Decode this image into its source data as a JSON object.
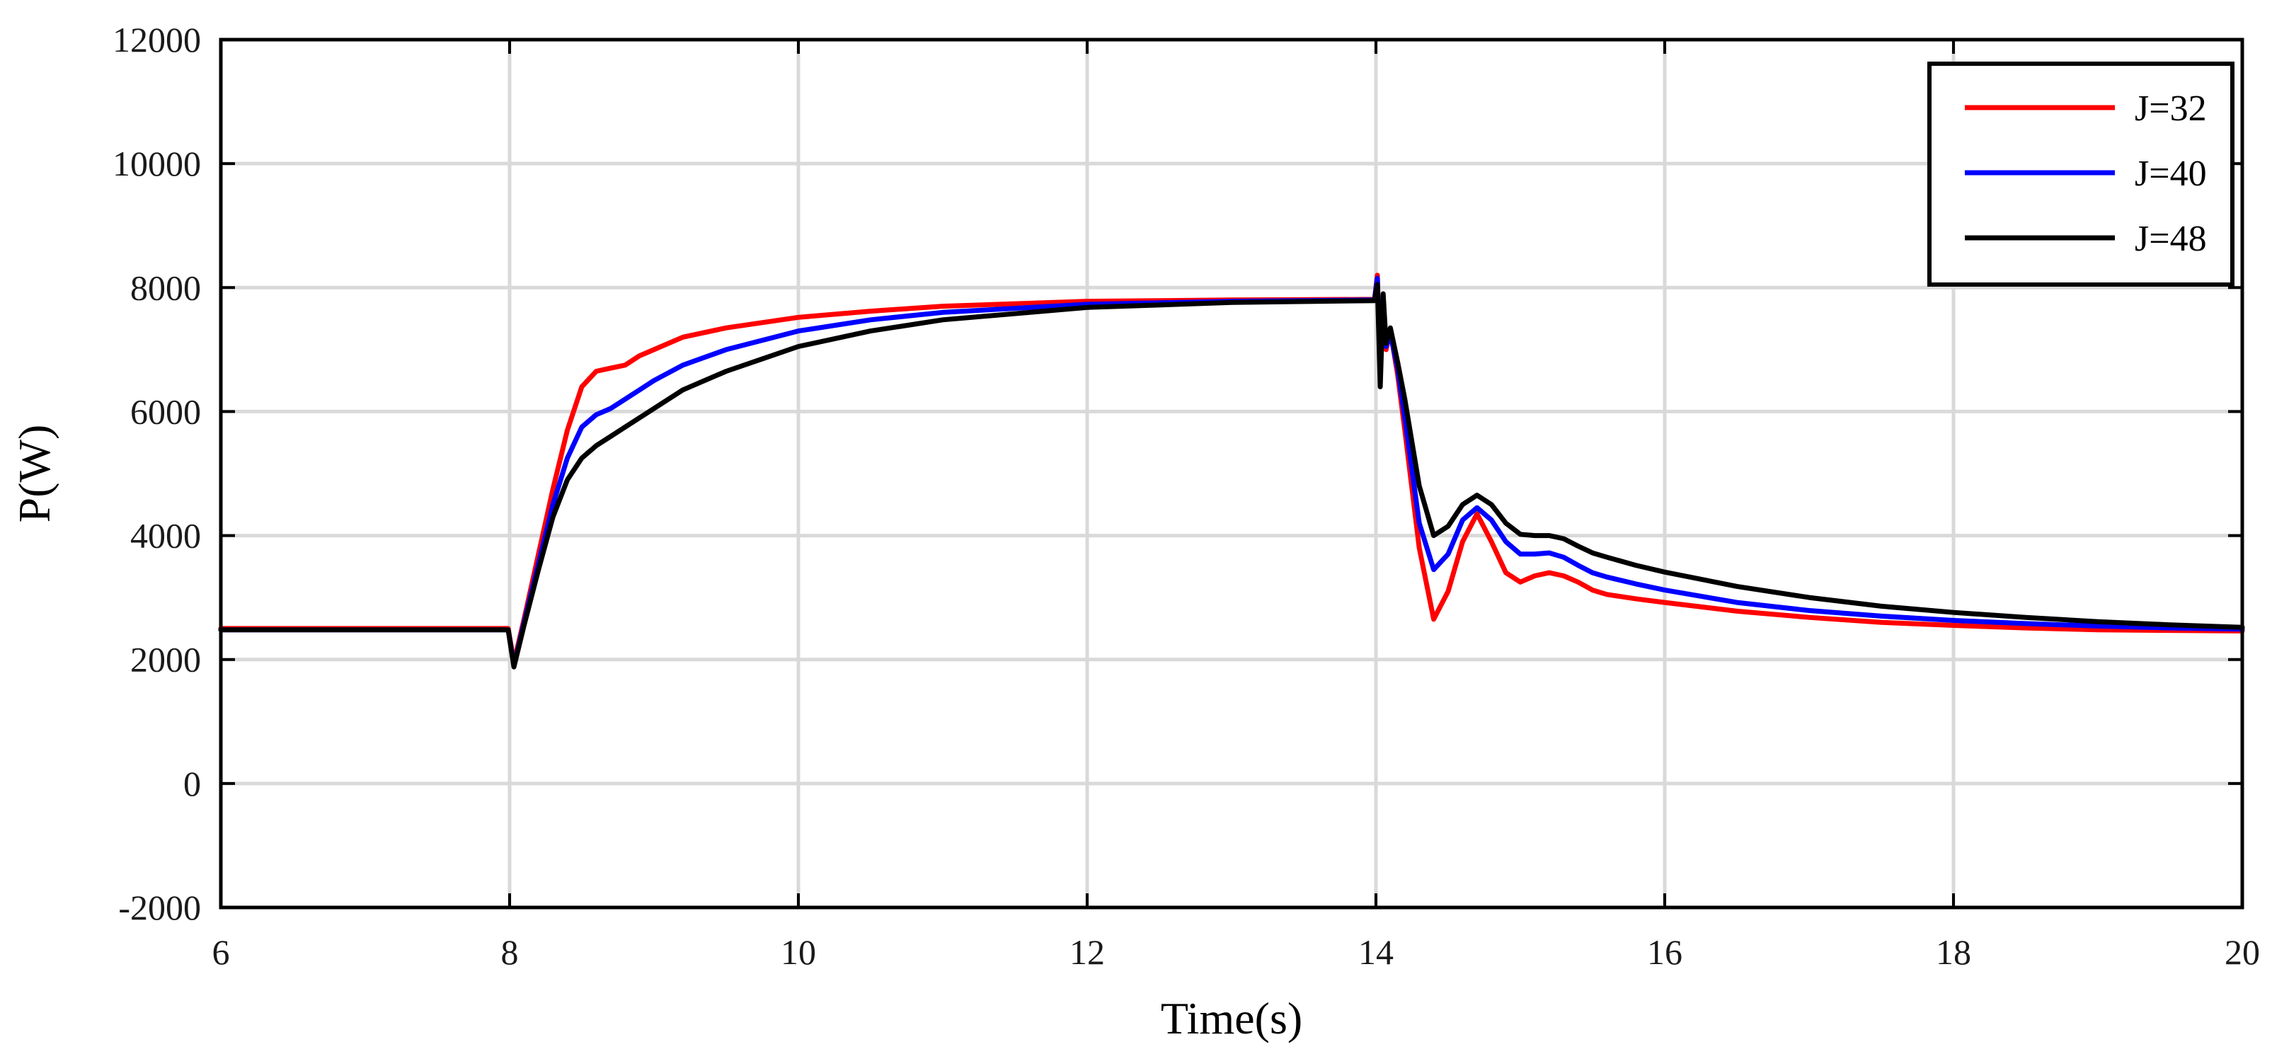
{
  "chart_data": {
    "type": "line",
    "title": "",
    "xlabel": "Time(s)",
    "ylabel": "P(W)",
    "xlim": [
      6,
      20
    ],
    "ylim": [
      -2000,
      12000
    ],
    "xticks": [
      6,
      8,
      10,
      12,
      14,
      16,
      18,
      20
    ],
    "yticks": [
      -2000,
      0,
      2000,
      4000,
      6000,
      8000,
      10000,
      12000
    ],
    "grid": true,
    "legend_position": "top-right",
    "series": [
      {
        "name": "J=32",
        "color": "#ff0000",
        "x": [
          6,
          7,
          7.99,
          8.03,
          8.1,
          8.2,
          8.3,
          8.4,
          8.5,
          8.6,
          8.7,
          8.8,
          8.9,
          9.0,
          9.2,
          9.5,
          10,
          10.5,
          11,
          12,
          13,
          13.99,
          14.01,
          14.03,
          14.05,
          14.07,
          14.1,
          14.15,
          14.2,
          14.3,
          14.4,
          14.5,
          14.6,
          14.7,
          14.8,
          14.9,
          15.0,
          15.1,
          15.2,
          15.3,
          15.4,
          15.5,
          15.6,
          15.8,
          16,
          16.5,
          17,
          17.5,
          18,
          18.5,
          19,
          19.5,
          20
        ],
        "values": [
          2500,
          2500,
          2500,
          1950,
          2650,
          3700,
          4750,
          5700,
          6400,
          6650,
          6700,
          6750,
          6900,
          7000,
          7200,
          7350,
          7520,
          7620,
          7700,
          7780,
          7800,
          7810,
          8200,
          6700,
          7700,
          7000,
          7300,
          6600,
          5700,
          3800,
          2650,
          3100,
          3900,
          4350,
          3900,
          3400,
          3250,
          3350,
          3400,
          3350,
          3250,
          3120,
          3050,
          2980,
          2920,
          2780,
          2680,
          2600,
          2550,
          2510,
          2480,
          2470,
          2460
        ]
      },
      {
        "name": "J=40",
        "color": "#0000ff",
        "x": [
          6,
          7,
          7.99,
          8.03,
          8.1,
          8.2,
          8.3,
          8.4,
          8.5,
          8.6,
          8.7,
          8.8,
          8.9,
          9.0,
          9.2,
          9.5,
          10,
          10.5,
          11,
          12,
          13,
          13.99,
          14.01,
          14.03,
          14.05,
          14.07,
          14.1,
          14.15,
          14.2,
          14.3,
          14.4,
          14.5,
          14.6,
          14.7,
          14.8,
          14.9,
          15.0,
          15.1,
          15.2,
          15.3,
          15.4,
          15.5,
          15.6,
          15.8,
          16,
          16.5,
          17,
          17.5,
          18,
          18.5,
          19,
          19.5,
          20
        ],
        "values": [
          2480,
          2480,
          2480,
          1900,
          2600,
          3550,
          4500,
          5250,
          5750,
          5950,
          6050,
          6200,
          6350,
          6500,
          6750,
          7000,
          7300,
          7480,
          7600,
          7730,
          7780,
          7800,
          8150,
          6600,
          7650,
          7050,
          7250,
          6700,
          5900,
          4200,
          3450,
          3700,
          4250,
          4450,
          4250,
          3900,
          3700,
          3700,
          3720,
          3650,
          3520,
          3400,
          3330,
          3220,
          3120,
          2920,
          2790,
          2700,
          2630,
          2580,
          2540,
          2510,
          2490
        ]
      },
      {
        "name": "J=48",
        "color": "#000000",
        "x": [
          6,
          7,
          7.99,
          8.03,
          8.1,
          8.2,
          8.3,
          8.4,
          8.5,
          8.6,
          8.7,
          8.8,
          8.9,
          9.0,
          9.2,
          9.5,
          10,
          10.5,
          11,
          12,
          13,
          13.99,
          14.01,
          14.03,
          14.05,
          14.07,
          14.1,
          14.15,
          14.2,
          14.3,
          14.4,
          14.5,
          14.6,
          14.7,
          14.8,
          14.9,
          15.0,
          15.1,
          15.2,
          15.3,
          15.4,
          15.5,
          15.6,
          15.8,
          16,
          16.5,
          17,
          17.5,
          18,
          18.5,
          19,
          19.5,
          20
        ],
        "values": [
          2480,
          2480,
          2480,
          1880,
          2550,
          3450,
          4300,
          4900,
          5250,
          5450,
          5600,
          5750,
          5900,
          6050,
          6350,
          6650,
          7050,
          7300,
          7480,
          7680,
          7760,
          7790,
          8050,
          6400,
          7900,
          7100,
          7350,
          6800,
          6200,
          4800,
          4000,
          4150,
          4500,
          4650,
          4500,
          4200,
          4020,
          4000,
          4000,
          3950,
          3830,
          3720,
          3650,
          3520,
          3410,
          3180,
          3000,
          2860,
          2760,
          2680,
          2610,
          2560,
          2520
        ]
      }
    ]
  }
}
